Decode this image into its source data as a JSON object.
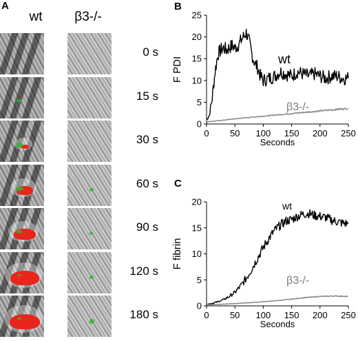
{
  "panel_a": {
    "letter": "A",
    "col_wt": "wt",
    "col_ko": "β3-/-",
    "times": [
      "0 s",
      "15 s",
      "30 s",
      "60 s",
      "90 s",
      "120 s",
      "180 s"
    ],
    "wt_clot_size": [
      0,
      0,
      0.15,
      0.45,
      0.6,
      0.85,
      0.9
    ],
    "wt_pdi_signal": [
      0,
      0.3,
      0.5,
      0.5,
      0.3,
      0.1,
      0.1
    ],
    "ko_pdi_signal": [
      0,
      0,
      0,
      0.2,
      0.15,
      0.2,
      0.3
    ],
    "colors": {
      "fibrin": "#e8261c",
      "pdi": "#32b432"
    }
  },
  "chart_data": [
    {
      "panel": "B",
      "type": "line",
      "title": "",
      "xlabel": "Seconds",
      "ylabel": "F PDI",
      "xlim": [
        0,
        250
      ],
      "ylim": [
        0,
        25
      ],
      "xticks": [
        "0",
        "50",
        "100",
        "150",
        "200",
        "250"
      ],
      "yticks": [
        "0",
        "5",
        "10",
        "15",
        "20",
        "25"
      ],
      "legend": "inline labels",
      "series": [
        {
          "name": "wt",
          "color": "#000000",
          "x": [
            0,
            5,
            10,
            15,
            20,
            25,
            30,
            35,
            40,
            45,
            50,
            55,
            60,
            65,
            70,
            75,
            80,
            85,
            90,
            95,
            100,
            110,
            120,
            130,
            140,
            150,
            160,
            170,
            180,
            190,
            200,
            210,
            220,
            230,
            240,
            250
          ],
          "y": [
            1,
            2,
            6,
            12,
            16,
            17,
            17.5,
            17,
            17.5,
            18,
            17.5,
            18,
            19,
            20,
            21,
            19,
            16,
            14,
            13,
            11,
            10,
            10.5,
            11,
            12,
            11.5,
            11,
            12,
            11.5,
            11,
            11.5,
            11,
            10.5,
            11,
            11,
            10.5,
            10.5
          ]
        },
        {
          "name": "β3-/-",
          "color": "#8c8c8c",
          "x": [
            0,
            25,
            50,
            75,
            100,
            125,
            150,
            175,
            200,
            225,
            250
          ],
          "y": [
            0.5,
            0.8,
            1.2,
            1.5,
            1.8,
            2.1,
            2.4,
            2.7,
            3.0,
            3.3,
            3.6
          ]
        }
      ]
    },
    {
      "panel": "C",
      "type": "line",
      "title": "",
      "xlabel": "Seconds",
      "ylabel": "F fibrin",
      "xlim": [
        0,
        250
      ],
      "ylim": [
        0,
        20
      ],
      "xticks": [
        "0",
        "50",
        "100",
        "150",
        "200",
        "250"
      ],
      "yticks": [
        "0",
        "5",
        "10",
        "15",
        "20"
      ],
      "legend": "inline labels",
      "series": [
        {
          "name": "wt",
          "color": "#000000",
          "x": [
            0,
            10,
            20,
            30,
            40,
            50,
            60,
            70,
            80,
            90,
            100,
            110,
            120,
            130,
            140,
            150,
            160,
            170,
            180,
            190,
            200,
            210,
            220,
            230,
            240,
            250
          ],
          "y": [
            0.3,
            0.5,
            0.8,
            1.2,
            1.8,
            2.6,
            3.8,
            5.3,
            7.2,
            9.2,
            11.2,
            13,
            14.5,
            15.5,
            16.3,
            16.6,
            17.2,
            17.6,
            17.8,
            17.4,
            17.2,
            17,
            16.5,
            16.2,
            15.9,
            15.8
          ]
        },
        {
          "name": "β3-/-",
          "color": "#8c8c8c",
          "x": [
            0,
            25,
            50,
            75,
            100,
            125,
            150,
            175,
            200,
            225,
            250
          ],
          "y": [
            0.2,
            0.3,
            0.45,
            0.6,
            0.8,
            1.0,
            1.3,
            1.6,
            1.8,
            1.9,
            1.8
          ]
        }
      ]
    }
  ]
}
